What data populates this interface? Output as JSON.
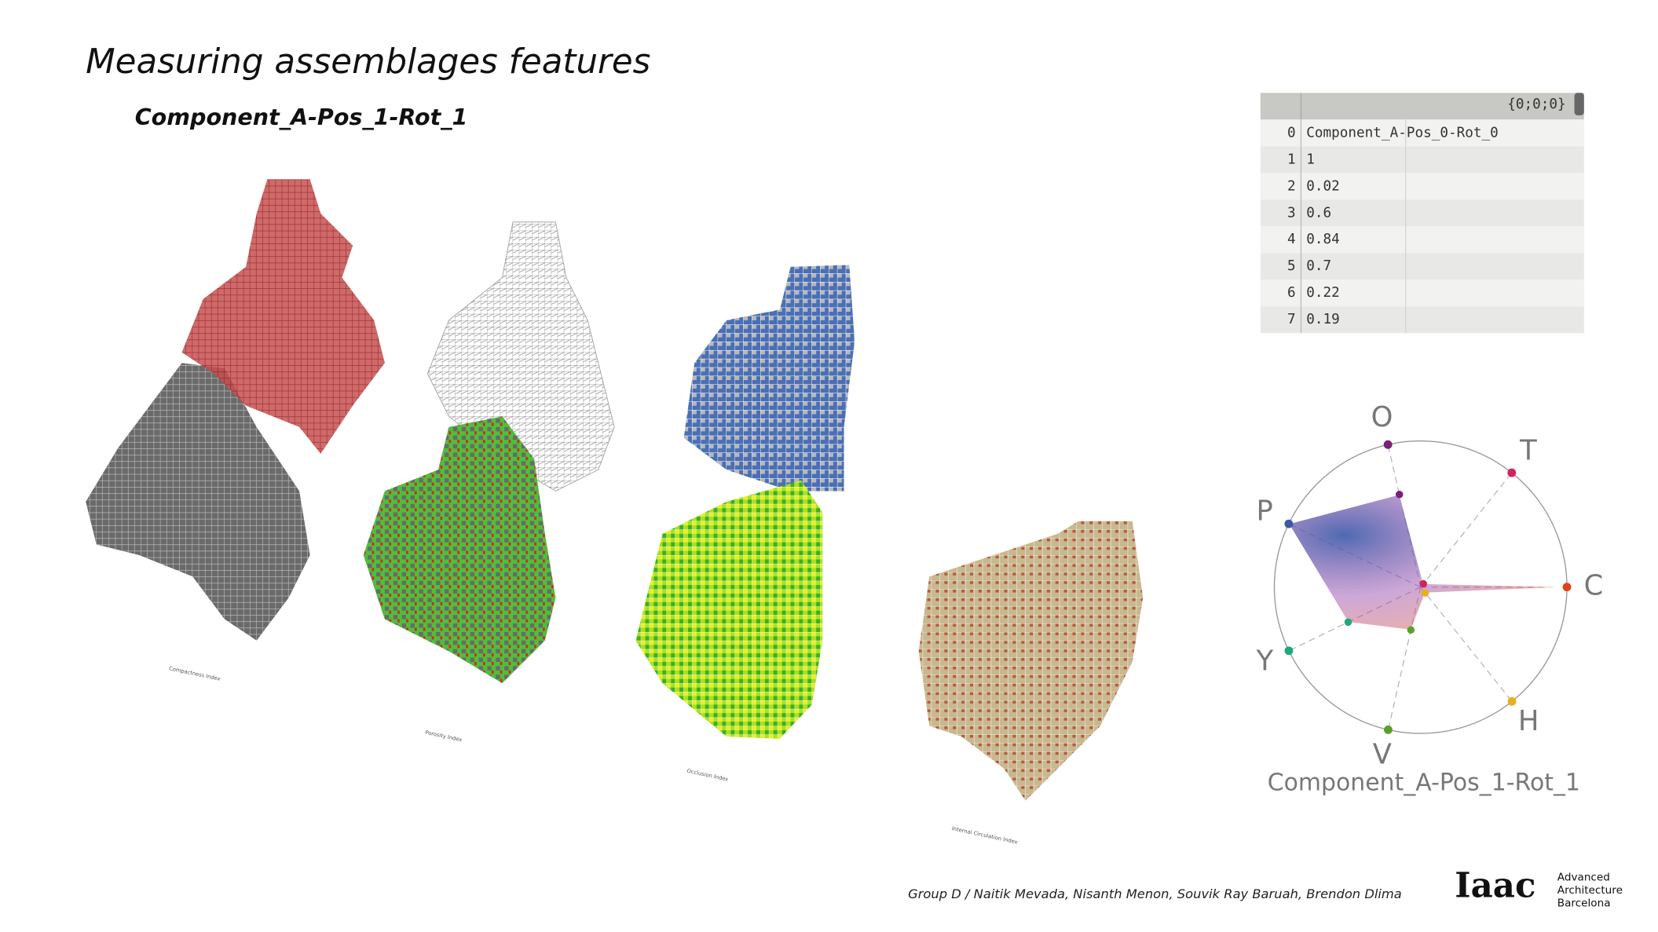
{
  "header": {
    "title": "Measuring assemblages features",
    "subtitle": "Component_A-Pos_1-Rot_1"
  },
  "panels": [
    {
      "label": "Compactness Index"
    },
    {
      "label": "Porosity Index"
    },
    {
      "label": "Occlusion Index"
    },
    {
      "label": "Internal Circulation Index"
    }
  ],
  "table": {
    "header": "{0;0;0}",
    "rows": [
      [
        "0",
        "Component_A-Pos_0-Rot_0"
      ],
      [
        "1",
        "1"
      ],
      [
        "2",
        "0.02"
      ],
      [
        "3",
        "0.6"
      ],
      [
        "4",
        "0.84"
      ],
      [
        "5",
        "0.7"
      ],
      [
        "6",
        "0.22"
      ],
      [
        "7",
        "0.19"
      ]
    ]
  },
  "chart_data": {
    "type": "radar",
    "title": "Component_A-Pos_1-Rot_1",
    "categories": [
      "O",
      "T",
      "C",
      "H",
      "V",
      "Y",
      "P"
    ],
    "values": [
      0.65,
      0.03,
      1,
      0.05,
      0.3,
      0.55,
      1
    ],
    "colors": [
      "#7b1f7a",
      "#d0245a",
      "#e0421e",
      "#e8b020",
      "#5aa02a",
      "#1aaa80",
      "#3a5aa8"
    ],
    "rlim": [
      0,
      1
    ]
  },
  "footer": {
    "credits": "Group D / Naitik Mevada, Nisanth Menon, Souvik Ray Baruah, Brendon Dlima",
    "logo": "Iaac",
    "logo_text": [
      "Advanced",
      "Architecture",
      "Barcelona"
    ]
  }
}
